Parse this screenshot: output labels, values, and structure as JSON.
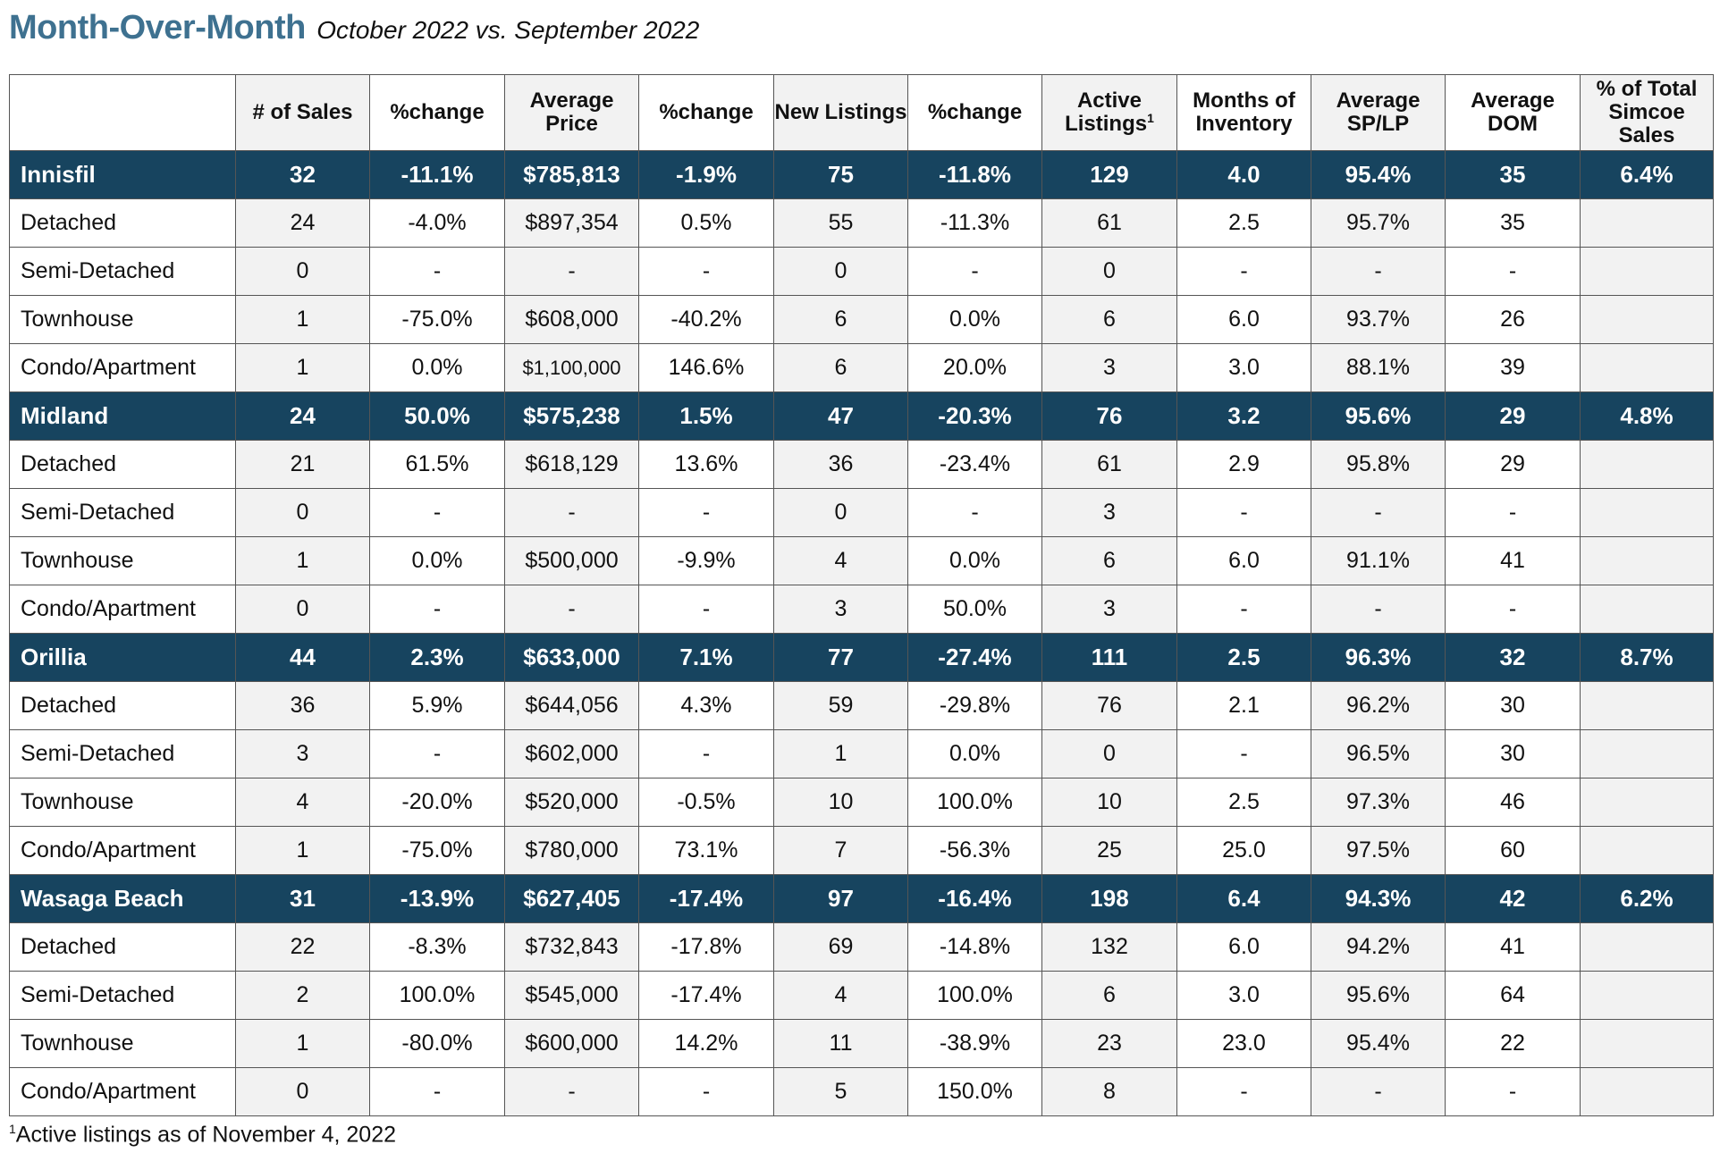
{
  "header": {
    "title": "Month-Over-Month",
    "subtitle": "October 2022 vs. September 2022"
  },
  "table": {
    "columns": [
      {
        "label": "",
        "sup": ""
      },
      {
        "label": "# of Sales",
        "sup": ""
      },
      {
        "label": "%change",
        "sup": ""
      },
      {
        "label": "Average Price",
        "sup": ""
      },
      {
        "label": "%change",
        "sup": ""
      },
      {
        "label": "New Listings",
        "sup": ""
      },
      {
        "label": "%change",
        "sup": ""
      },
      {
        "label": "Active Listings",
        "sup": "1"
      },
      {
        "label": "Months of Inventory",
        "sup": ""
      },
      {
        "label": "Average SP/LP",
        "sup": ""
      },
      {
        "label": "Average DOM",
        "sup": ""
      },
      {
        "label": "% of Total Simcoe Sales",
        "sup": ""
      }
    ],
    "rows": [
      {
        "type": "region",
        "cells": [
          "Innisfil",
          "32",
          "-11.1%",
          "$785,813",
          "-1.9%",
          "75",
          "-11.8%",
          "129",
          "4.0",
          "95.4%",
          "35",
          "6.4%"
        ]
      },
      {
        "type": "sub",
        "cells": [
          "Detached",
          "24",
          "-4.0%",
          "$897,354",
          "0.5%",
          "55",
          "-11.3%",
          "61",
          "2.5",
          "95.7%",
          "35",
          ""
        ]
      },
      {
        "type": "sub",
        "cells": [
          "Semi-Detached",
          "0",
          "-",
          "-",
          "-",
          "0",
          "-",
          "0",
          "-",
          "-",
          "-",
          ""
        ]
      },
      {
        "type": "sub",
        "cells": [
          "Townhouse",
          "1",
          "-75.0%",
          "$608,000",
          "-40.2%",
          "6",
          "0.0%",
          "6",
          "6.0",
          "93.7%",
          "26",
          ""
        ]
      },
      {
        "type": "sub",
        "small_price": true,
        "cells": [
          "Condo/Apartment",
          "1",
          "0.0%",
          "$1,100,000",
          "146.6%",
          "6",
          "20.0%",
          "3",
          "3.0",
          "88.1%",
          "39",
          ""
        ]
      },
      {
        "type": "region",
        "cells": [
          "Midland",
          "24",
          "50.0%",
          "$575,238",
          "1.5%",
          "47",
          "-20.3%",
          "76",
          "3.2",
          "95.6%",
          "29",
          "4.8%"
        ]
      },
      {
        "type": "sub",
        "cells": [
          "Detached",
          "21",
          "61.5%",
          "$618,129",
          "13.6%",
          "36",
          "-23.4%",
          "61",
          "2.9",
          "95.8%",
          "29",
          ""
        ]
      },
      {
        "type": "sub",
        "cells": [
          "Semi-Detached",
          "0",
          "-",
          "-",
          "-",
          "0",
          "-",
          "3",
          "-",
          "-",
          "-",
          ""
        ]
      },
      {
        "type": "sub",
        "cells": [
          "Townhouse",
          "1",
          "0.0%",
          "$500,000",
          "-9.9%",
          "4",
          "0.0%",
          "6",
          "6.0",
          "91.1%",
          "41",
          ""
        ]
      },
      {
        "type": "sub",
        "cells": [
          "Condo/Apartment",
          "0",
          "-",
          "-",
          "-",
          "3",
          "50.0%",
          "3",
          "-",
          "-",
          "-",
          ""
        ]
      },
      {
        "type": "region",
        "cells": [
          "Orillia",
          "44",
          "2.3%",
          "$633,000",
          "7.1%",
          "77",
          "-27.4%",
          "111",
          "2.5",
          "96.3%",
          "32",
          "8.7%"
        ]
      },
      {
        "type": "sub",
        "cells": [
          "Detached",
          "36",
          "5.9%",
          "$644,056",
          "4.3%",
          "59",
          "-29.8%",
          "76",
          "2.1",
          "96.2%",
          "30",
          ""
        ]
      },
      {
        "type": "sub",
        "cells": [
          "Semi-Detached",
          "3",
          "-",
          "$602,000",
          "-",
          "1",
          "0.0%",
          "0",
          "-",
          "96.5%",
          "30",
          ""
        ]
      },
      {
        "type": "sub",
        "cells": [
          "Townhouse",
          "4",
          "-20.0%",
          "$520,000",
          "-0.5%",
          "10",
          "100.0%",
          "10",
          "2.5",
          "97.3%",
          "46",
          ""
        ]
      },
      {
        "type": "sub",
        "cells": [
          "Condo/Apartment",
          "1",
          "-75.0%",
          "$780,000",
          "73.1%",
          "7",
          "-56.3%",
          "25",
          "25.0",
          "97.5%",
          "60",
          ""
        ]
      },
      {
        "type": "region",
        "cells": [
          "Wasaga Beach",
          "31",
          "-13.9%",
          "$627,405",
          "-17.4%",
          "97",
          "-16.4%",
          "198",
          "6.4",
          "94.3%",
          "42",
          "6.2%"
        ]
      },
      {
        "type": "sub",
        "cells": [
          "Detached",
          "22",
          "-8.3%",
          "$732,843",
          "-17.8%",
          "69",
          "-14.8%",
          "132",
          "6.0",
          "94.2%",
          "41",
          ""
        ]
      },
      {
        "type": "sub",
        "cells": [
          "Semi-Detached",
          "2",
          "100.0%",
          "$545,000",
          "-17.4%",
          "4",
          "100.0%",
          "6",
          "3.0",
          "95.6%",
          "64",
          ""
        ]
      },
      {
        "type": "sub",
        "cells": [
          "Townhouse",
          "1",
          "-80.0%",
          "$600,000",
          "14.2%",
          "11",
          "-38.9%",
          "23",
          "23.0",
          "95.4%",
          "22",
          ""
        ]
      },
      {
        "type": "sub",
        "cells": [
          "Condo/Apartment",
          "0",
          "-",
          "-",
          "-",
          "5",
          "150.0%",
          "8",
          "-",
          "-",
          "-",
          ""
        ]
      }
    ]
  },
  "footnote": {
    "marker": "1",
    "text": "Active listings as of November 4, 2022"
  },
  "colors": {
    "title": "#3e7190",
    "region_row": "#17445f",
    "shaded_column": "#f2f2f2"
  }
}
